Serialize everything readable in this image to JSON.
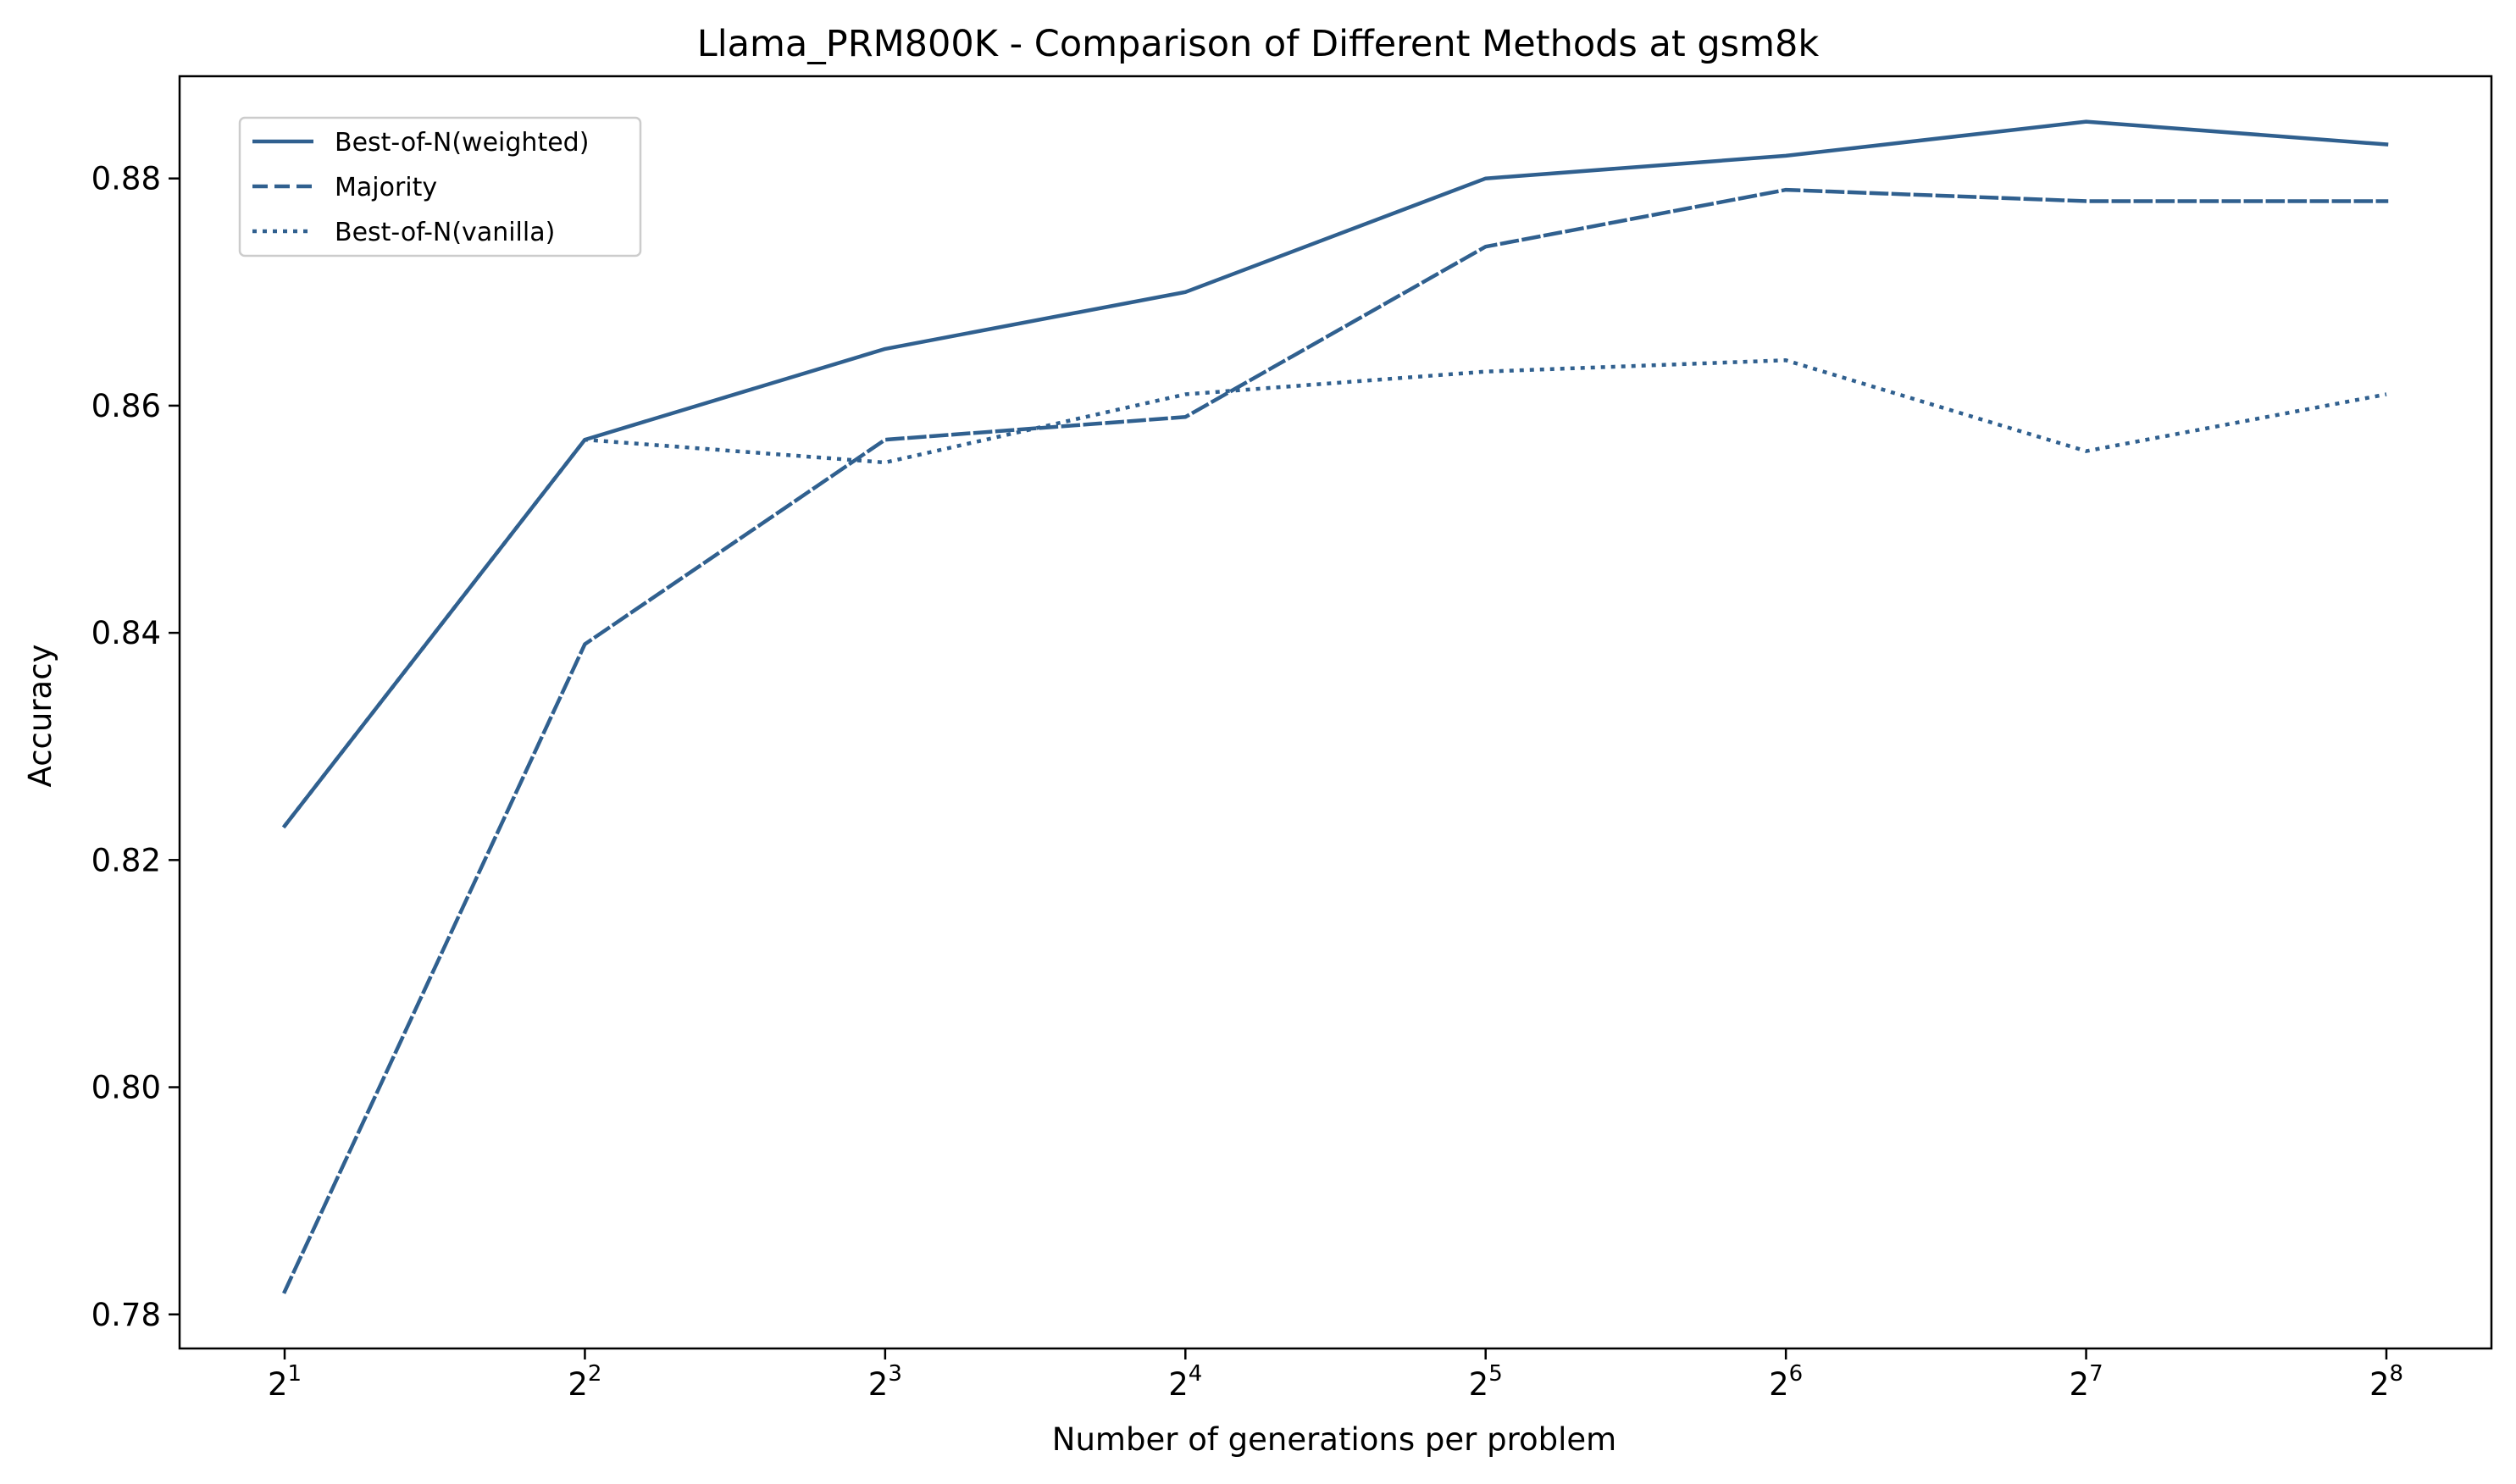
{
  "chart_data": {
    "type": "line",
    "title": "Llama_PRM800K - Comparison of Different Methods at gsm8k",
    "xlabel": "Number of generations per problem",
    "ylabel": "Accuracy",
    "x_scale": "log2",
    "x": [
      2,
      4,
      8,
      16,
      32,
      64,
      128,
      256
    ],
    "x_tick_base": "2",
    "x_tick_exponents": [
      "1",
      "2",
      "3",
      "4",
      "5",
      "6",
      "7",
      "8"
    ],
    "ylim": [
      0.777,
      0.889
    ],
    "y_ticks": [
      0.78,
      0.8,
      0.82,
      0.84,
      0.86,
      0.88
    ],
    "y_tick_labels": [
      "0.78",
      "0.80",
      "0.82",
      "0.84",
      "0.86",
      "0.88"
    ],
    "grid": false,
    "legend_position": "top-left",
    "line_color": "#30608f",
    "series": [
      {
        "name": "Best-of-N(weighted)",
        "style": "solid",
        "values": [
          0.823,
          0.857,
          0.865,
          0.87,
          0.88,
          0.882,
          0.885,
          0.883
        ]
      },
      {
        "name": "Majority",
        "style": "dashed",
        "values": [
          0.782,
          0.839,
          0.857,
          0.859,
          0.874,
          0.879,
          0.878,
          0.878
        ]
      },
      {
        "name": "Best-of-N(vanilla)",
        "style": "dotted",
        "values": [
          0.823,
          0.857,
          0.855,
          0.861,
          0.863,
          0.864,
          0.856,
          0.861
        ]
      }
    ]
  }
}
